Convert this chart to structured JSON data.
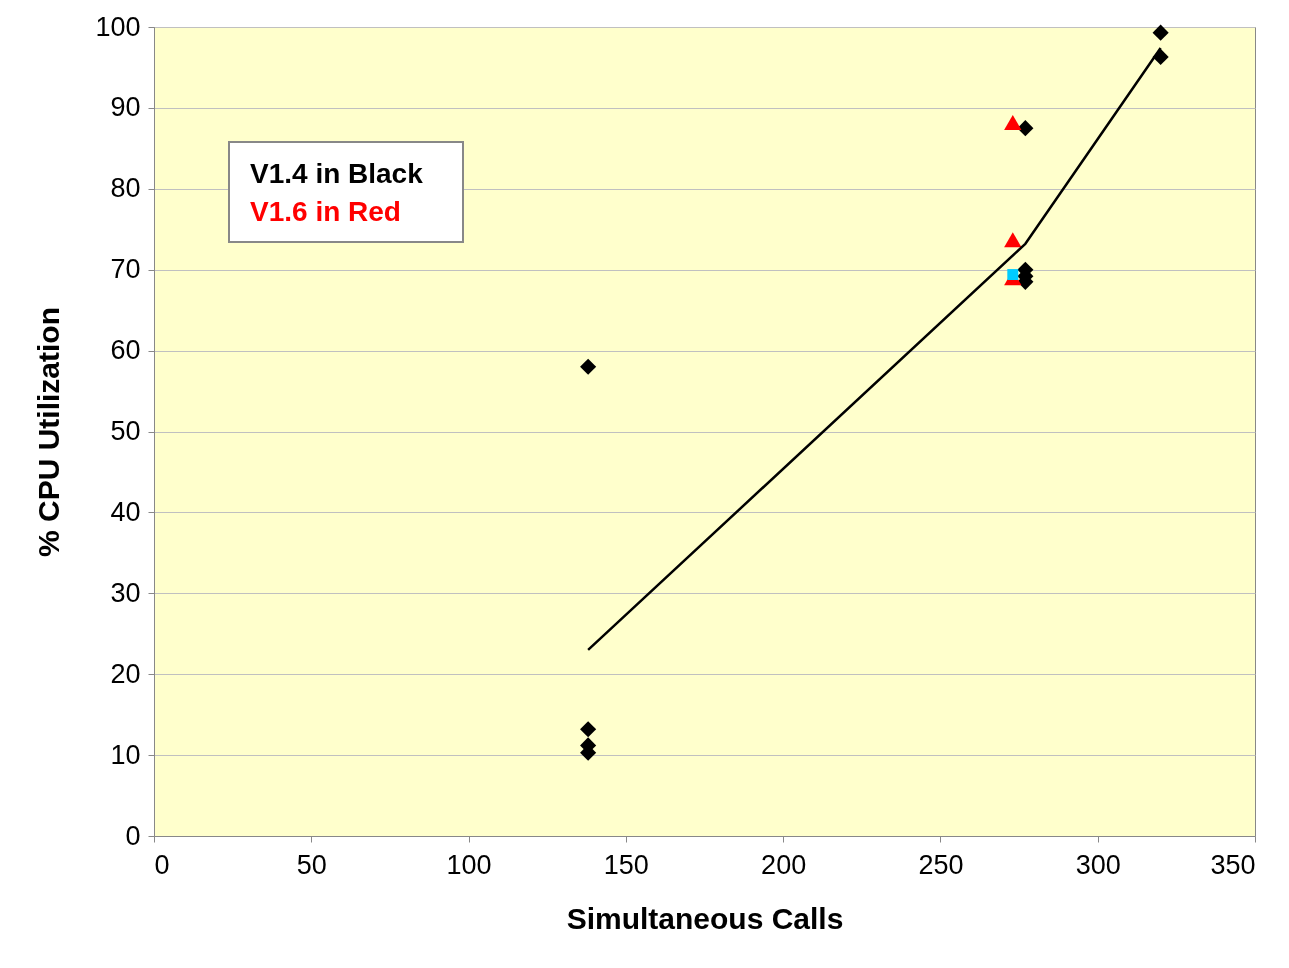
{
  "chart_data": {
    "type": "scatter",
    "xlabel": "Simultaneous Calls",
    "ylabel": "% CPU Utilization",
    "annotations": [
      "V1.4 in Black",
      "V1.6 in Red"
    ],
    "xlim": [
      0,
      350
    ],
    "xticks": [
      0,
      50,
      100,
      150,
      200,
      250,
      300,
      350
    ],
    "ylim": [
      0,
      100
    ],
    "yticks": [
      0,
      10,
      20,
      30,
      40,
      50,
      60,
      70,
      80,
      90,
      100
    ],
    "grid": "y",
    "series": [
      {
        "marker": "diamond",
        "color": "#000000",
        "x": [
          138,
          138,
          138,
          138,
          277,
          277,
          277,
          277,
          320,
          320
        ],
        "values": [
          58,
          13.2,
          11.2,
          10.3,
          87.5,
          70,
          69.2,
          68.5,
          99.3,
          96.3
        ]
      },
      {
        "marker": "triangle",
        "color": "#ff0000",
        "x": [
          273,
          273,
          273
        ],
        "values": [
          88.2,
          73.7,
          69
        ]
      },
      {
        "marker": "square",
        "color": "#00ccff",
        "x": [
          273
        ],
        "values": [
          69.4
        ]
      },
      {
        "type": "line",
        "marker": "none",
        "color": "#000000",
        "x": [
          138,
          277,
          320
        ],
        "values": [
          23,
          73.2,
          97.4
        ]
      }
    ]
  }
}
